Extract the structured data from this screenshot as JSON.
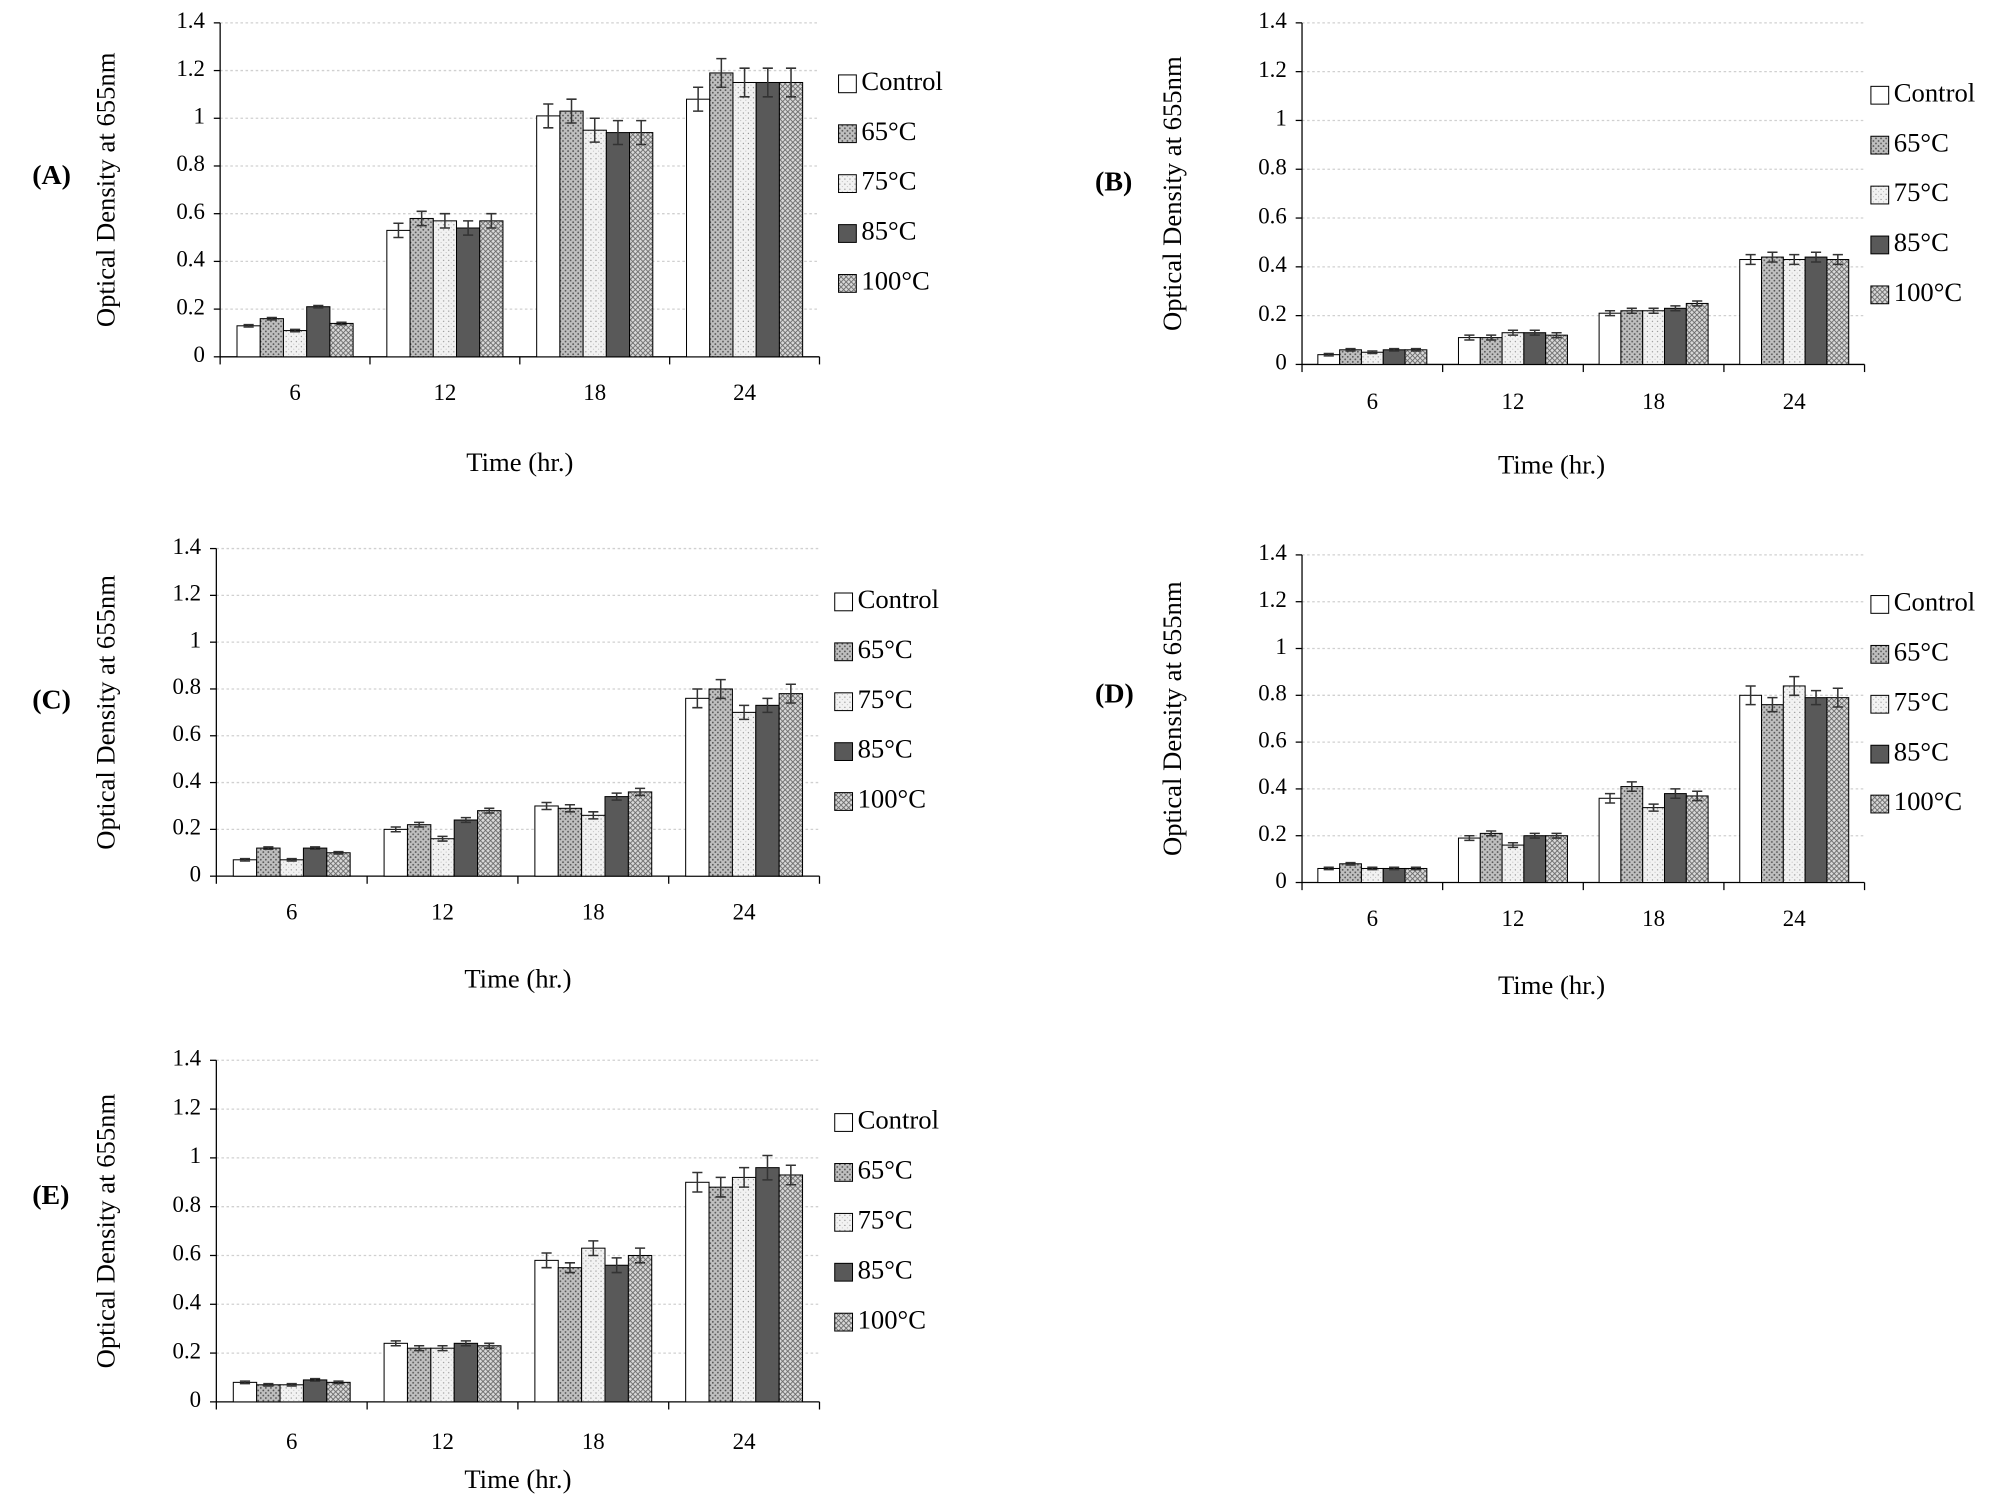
{
  "chart_data": [
    {
      "type": "bar",
      "label": "(A)",
      "x_label": "Time (hr.)",
      "y_label": "Optical Density at 655nm",
      "categories": [
        "6",
        "12",
        "18",
        "24"
      ],
      "ylim": [
        0,
        1.4
      ],
      "yticks": [
        0,
        0.2,
        0.4,
        0.6,
        0.8,
        1,
        1.2,
        1.4
      ],
      "grid": true,
      "series": [
        {
          "name": "Control",
          "color": "#ffffff",
          "pattern": "none",
          "values": [
            0.13,
            0.53,
            1.01,
            1.08
          ],
          "errors": [
            0.005,
            0.03,
            0.05,
            0.05
          ]
        },
        {
          "name": "65°C",
          "color": "#bfbfbf",
          "pattern": "dots",
          "values": [
            0.16,
            0.58,
            1.03,
            1.19
          ],
          "errors": [
            0.005,
            0.03,
            0.05,
            0.06
          ]
        },
        {
          "name": "75°C",
          "color": "#f2f2f2",
          "pattern": "speckle",
          "values": [
            0.11,
            0.57,
            0.95,
            1.15
          ],
          "errors": [
            0.005,
            0.03,
            0.05,
            0.06
          ]
        },
        {
          "name": "85°C",
          "color": "#595959",
          "pattern": "none",
          "values": [
            0.21,
            0.54,
            0.94,
            1.15
          ],
          "errors": [
            0.005,
            0.03,
            0.05,
            0.06
          ]
        },
        {
          "name": "100°C",
          "color": "#d9d9d9",
          "pattern": "crosshatch",
          "values": [
            0.14,
            0.57,
            0.94,
            1.15
          ],
          "errors": [
            0.005,
            0.03,
            0.05,
            0.06
          ]
        }
      ]
    },
    {
      "type": "bar",
      "label": "(B)",
      "x_label": "Time (hr.)",
      "y_label": "Optical Density at 655nm",
      "categories": [
        "6",
        "12",
        "18",
        "24"
      ],
      "ylim": [
        0,
        1.4
      ],
      "yticks": [
        0,
        0.2,
        0.4,
        0.6,
        0.8,
        1,
        1.2,
        1.4
      ],
      "grid": true,
      "series": [
        {
          "name": "Control",
          "color": "#ffffff",
          "pattern": "none",
          "values": [
            0.04,
            0.11,
            0.21,
            0.43
          ],
          "errors": [
            0.005,
            0.01,
            0.01,
            0.02
          ]
        },
        {
          "name": "65°C",
          "color": "#bfbfbf",
          "pattern": "dots",
          "values": [
            0.06,
            0.11,
            0.22,
            0.44
          ],
          "errors": [
            0.005,
            0.01,
            0.01,
            0.02
          ]
        },
        {
          "name": "75°C",
          "color": "#f2f2f2",
          "pattern": "speckle",
          "values": [
            0.05,
            0.13,
            0.22,
            0.43
          ],
          "errors": [
            0.005,
            0.01,
            0.01,
            0.02
          ]
        },
        {
          "name": "85°C",
          "color": "#595959",
          "pattern": "none",
          "values": [
            0.06,
            0.13,
            0.23,
            0.44
          ],
          "errors": [
            0.005,
            0.01,
            0.01,
            0.02
          ]
        },
        {
          "name": "100°C",
          "color": "#d9d9d9",
          "pattern": "crosshatch",
          "values": [
            0.06,
            0.12,
            0.25,
            0.43
          ],
          "errors": [
            0.005,
            0.01,
            0.01,
            0.02
          ]
        }
      ]
    },
    {
      "type": "bar",
      "label": "(C)",
      "x_label": "Time (hr.)",
      "y_label": "Optical Density at 655nm",
      "categories": [
        "6",
        "12",
        "18",
        "24"
      ],
      "ylim": [
        0,
        1.4
      ],
      "yticks": [
        0,
        0.2,
        0.4,
        0.6,
        0.8,
        1,
        1.2,
        1.4
      ],
      "grid": true,
      "series": [
        {
          "name": "Control",
          "color": "#ffffff",
          "pattern": "none",
          "values": [
            0.07,
            0.2,
            0.3,
            0.76
          ],
          "errors": [
            0.005,
            0.01,
            0.015,
            0.04
          ]
        },
        {
          "name": "65°C",
          "color": "#bfbfbf",
          "pattern": "dots",
          "values": [
            0.12,
            0.22,
            0.29,
            0.8
          ],
          "errors": [
            0.005,
            0.01,
            0.015,
            0.04
          ]
        },
        {
          "name": "75°C",
          "color": "#f2f2f2",
          "pattern": "speckle",
          "values": [
            0.07,
            0.16,
            0.26,
            0.7
          ],
          "errors": [
            0.005,
            0.01,
            0.015,
            0.03
          ]
        },
        {
          "name": "85°C",
          "color": "#595959",
          "pattern": "none",
          "values": [
            0.12,
            0.24,
            0.34,
            0.73
          ],
          "errors": [
            0.005,
            0.01,
            0.015,
            0.03
          ]
        },
        {
          "name": "100°C",
          "color": "#d9d9d9",
          "pattern": "crosshatch",
          "values": [
            0.1,
            0.28,
            0.36,
            0.78
          ],
          "errors": [
            0.005,
            0.01,
            0.015,
            0.04
          ]
        }
      ]
    },
    {
      "type": "bar",
      "label": "(D)",
      "x_label": "Time (hr.)",
      "y_label": "Optical Density at 655nm",
      "categories": [
        "6",
        "12",
        "18",
        "24"
      ],
      "ylim": [
        0,
        1.4
      ],
      "yticks": [
        0,
        0.2,
        0.4,
        0.6,
        0.8,
        1,
        1.2,
        1.4
      ],
      "grid": true,
      "series": [
        {
          "name": "Control",
          "color": "#ffffff",
          "pattern": "none",
          "values": [
            0.06,
            0.19,
            0.36,
            0.8
          ],
          "errors": [
            0.005,
            0.01,
            0.02,
            0.04
          ]
        },
        {
          "name": "65°C",
          "color": "#bfbfbf",
          "pattern": "dots",
          "values": [
            0.08,
            0.21,
            0.41,
            0.76
          ],
          "errors": [
            0.005,
            0.01,
            0.02,
            0.03
          ]
        },
        {
          "name": "75°C",
          "color": "#f2f2f2",
          "pattern": "speckle",
          "values": [
            0.06,
            0.16,
            0.32,
            0.84
          ],
          "errors": [
            0.005,
            0.01,
            0.015,
            0.04
          ]
        },
        {
          "name": "85°C",
          "color": "#595959",
          "pattern": "none",
          "values": [
            0.06,
            0.2,
            0.38,
            0.79
          ],
          "errors": [
            0.005,
            0.01,
            0.02,
            0.03
          ]
        },
        {
          "name": "100°C",
          "color": "#d9d9d9",
          "pattern": "crosshatch",
          "values": [
            0.06,
            0.2,
            0.37,
            0.79
          ],
          "errors": [
            0.005,
            0.01,
            0.02,
            0.04
          ]
        }
      ]
    },
    {
      "type": "bar",
      "label": "(E)",
      "x_label": "Time (hr.)",
      "y_label": "Optical Density at 655nm",
      "categories": [
        "6",
        "12",
        "18",
        "24"
      ],
      "ylim": [
        0,
        1.4
      ],
      "yticks": [
        0,
        0.2,
        0.4,
        0.6,
        0.8,
        1,
        1.2,
        1.4
      ],
      "grid": true,
      "series": [
        {
          "name": "Control",
          "color": "#ffffff",
          "pattern": "none",
          "values": [
            0.08,
            0.24,
            0.58,
            0.9
          ],
          "errors": [
            0.005,
            0.01,
            0.03,
            0.04
          ]
        },
        {
          "name": "65°C",
          "color": "#bfbfbf",
          "pattern": "dots",
          "values": [
            0.07,
            0.22,
            0.55,
            0.88
          ],
          "errors": [
            0.005,
            0.01,
            0.02,
            0.04
          ]
        },
        {
          "name": "75°C",
          "color": "#f2f2f2",
          "pattern": "speckle",
          "values": [
            0.07,
            0.22,
            0.63,
            0.92
          ],
          "errors": [
            0.005,
            0.01,
            0.03,
            0.04
          ]
        },
        {
          "name": "85°C",
          "color": "#595959",
          "pattern": "none",
          "values": [
            0.09,
            0.24,
            0.56,
            0.96
          ],
          "errors": [
            0.005,
            0.01,
            0.03,
            0.05
          ]
        },
        {
          "name": "100°C",
          "color": "#d9d9d9",
          "pattern": "crosshatch",
          "values": [
            0.08,
            0.23,
            0.6,
            0.93
          ],
          "errors": [
            0.005,
            0.01,
            0.03,
            0.04
          ]
        }
      ]
    }
  ]
}
